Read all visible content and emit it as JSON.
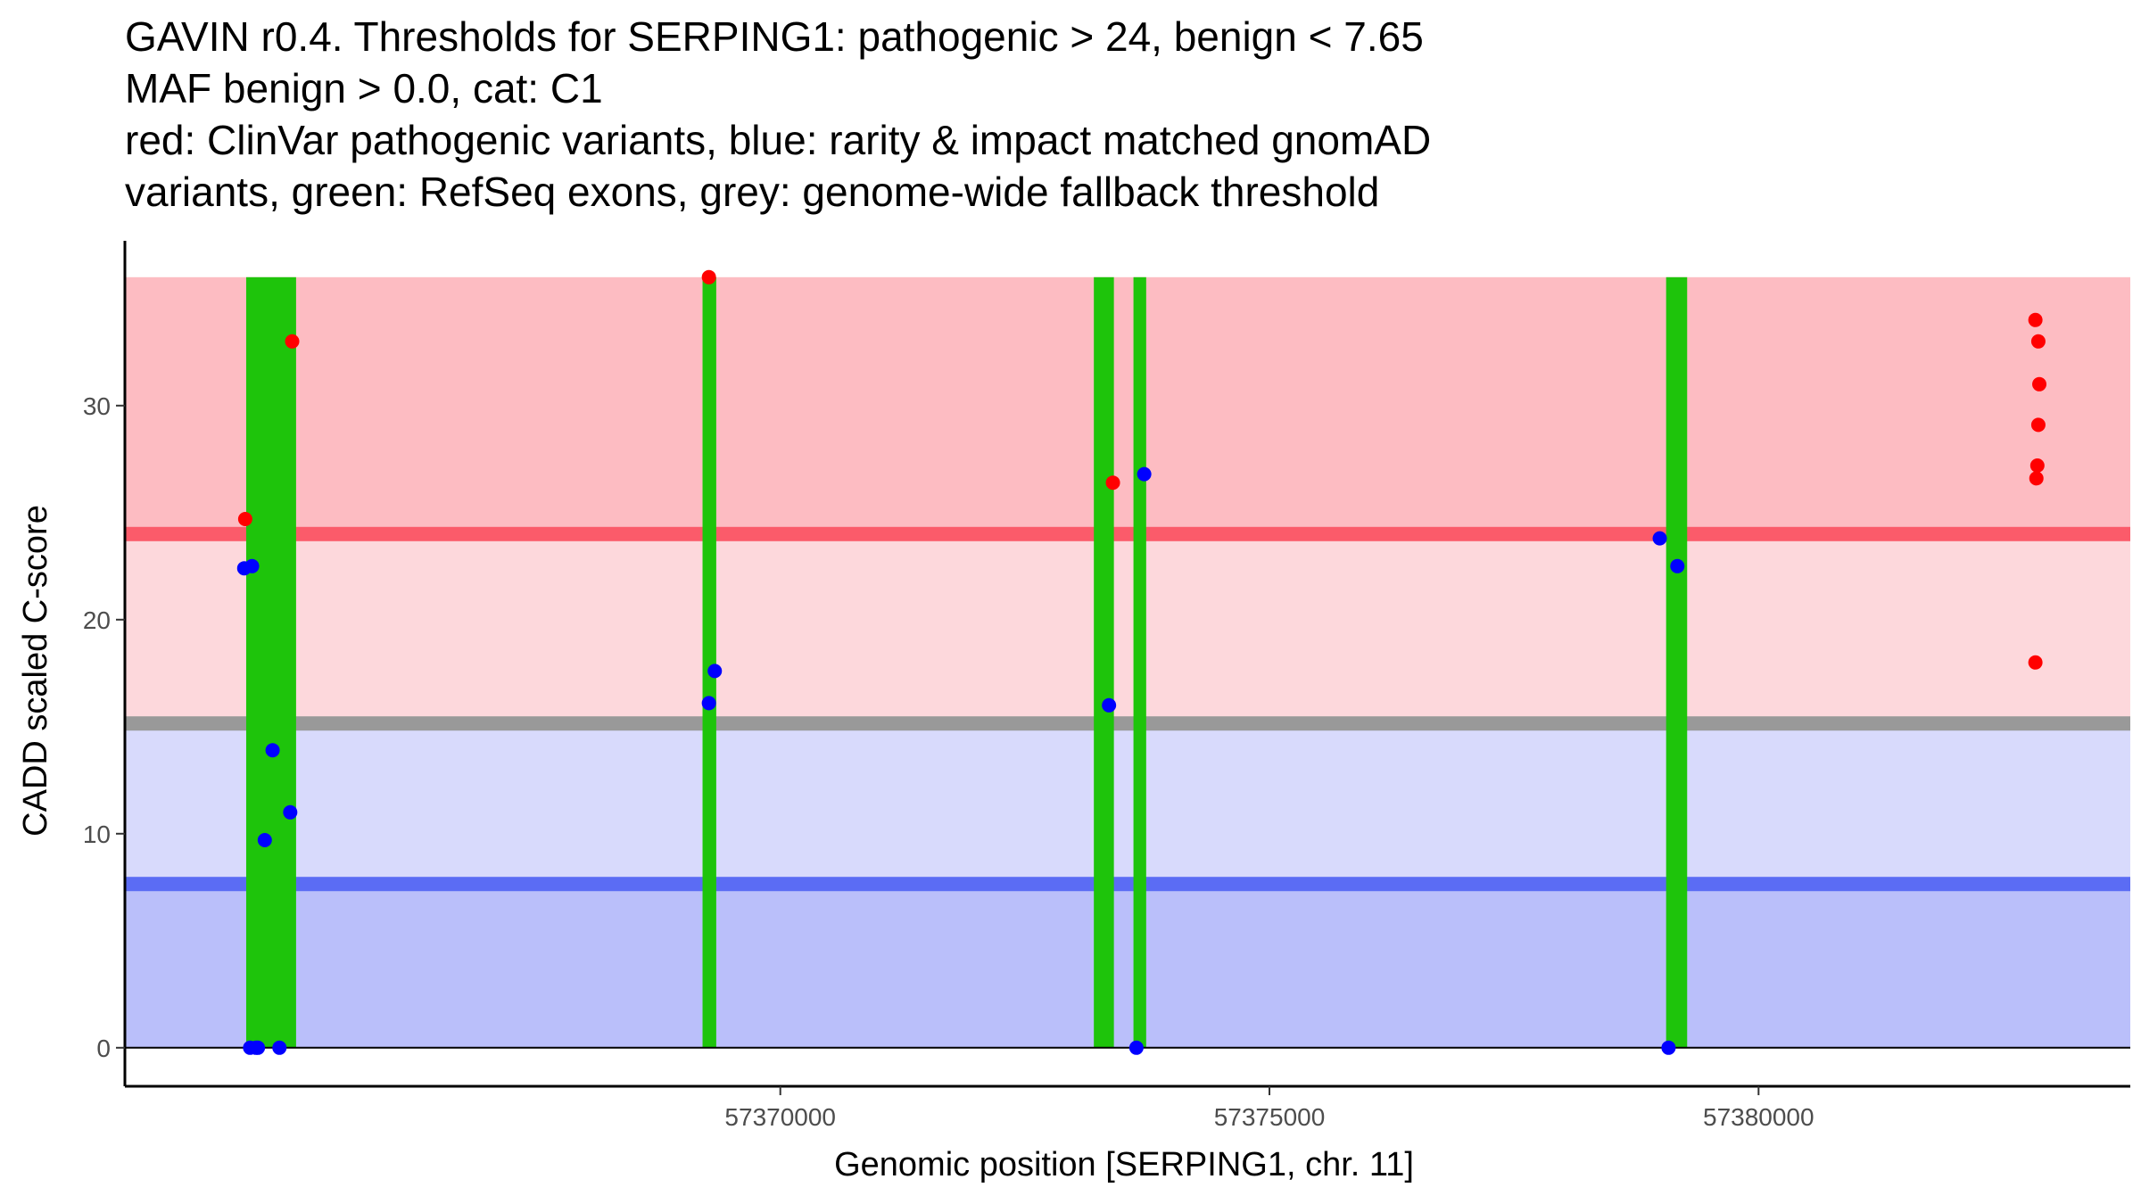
{
  "title_lines": [
    "GAVIN r0.4. Thresholds for SERPING1: pathogenic > 24, benign < 7.65",
    "MAF benign > 0.0, cat: C1",
    "red: ClinVar pathogenic variants, blue: rarity & impact matched gnomAD",
    "variants, green: RefSeq exons, grey: genome-wide fallback threshold"
  ],
  "colors": {
    "pathogenic_zone": "#fdbcc2",
    "intermediate_zone": "#fdd8dc",
    "low_zone": "#d8dafc",
    "benign_zone": "#babffa",
    "pathogenic_line": "#fb5b6a",
    "fallback_line": "#999999",
    "benign_line": "#5b6cf4",
    "exon": "#1ec40b",
    "clinvar_point": "#ff0000",
    "gnomad_point": "#0000ff",
    "axis": "#000000"
  },
  "chart_data": {
    "type": "scatter",
    "xlabel": "Genomic position [SERPING1, chr. 11]",
    "ylabel": "CADD scaled C-score",
    "xlim": [
      57363300,
      57383800
    ],
    "ylim": [
      -1.8,
      37.7
    ],
    "xticks": [
      57370000,
      57375000,
      57380000
    ],
    "yticks": [
      0,
      10,
      20,
      30
    ],
    "grid": false,
    "thresholds": {
      "pathogenic": 24,
      "benign": 7.65,
      "genome_wide_fallback": 15.15
    },
    "bands": [
      {
        "name": "pathogenic-zone",
        "ymin": 24,
        "ymax": 36,
        "color_key": "pathogenic_zone"
      },
      {
        "name": "intermediate-zone",
        "ymin": 15.15,
        "ymax": 24,
        "color_key": "intermediate_zone"
      },
      {
        "name": "low-zone",
        "ymin": 7.65,
        "ymax": 15.15,
        "color_key": "low_zone"
      },
      {
        "name": "benign-zone",
        "ymin": 0,
        "ymax": 7.65,
        "color_key": "benign_zone"
      }
    ],
    "exons": [
      {
        "start": 57364540,
        "end": 57365050
      },
      {
        "start": 57369205,
        "end": 57369345
      },
      {
        "start": 57373205,
        "end": 57373410
      },
      {
        "start": 57373610,
        "end": 57373740
      },
      {
        "start": 57379055,
        "end": 57379270
      }
    ],
    "series": [
      {
        "name": "ClinVar pathogenic variants",
        "color_key": "clinvar_point",
        "points": [
          {
            "x": 57364530,
            "y": 24.7
          },
          {
            "x": 57365010,
            "y": 33
          },
          {
            "x": 57369270,
            "y": 36
          },
          {
            "x": 57373400,
            "y": 26.4
          },
          {
            "x": 57382830,
            "y": 34
          },
          {
            "x": 57382860,
            "y": 33
          },
          {
            "x": 57382870,
            "y": 31
          },
          {
            "x": 57382860,
            "y": 29.1
          },
          {
            "x": 57382850,
            "y": 27.2
          },
          {
            "x": 57382840,
            "y": 26.6
          },
          {
            "x": 57382830,
            "y": 18
          }
        ]
      },
      {
        "name": "rarity & impact matched gnomAD variants",
        "color_key": "gnomad_point",
        "points": [
          {
            "x": 57364520,
            "y": 22.4
          },
          {
            "x": 57364600,
            "y": 22.5
          },
          {
            "x": 57364580,
            "y": 0
          },
          {
            "x": 57364640,
            "y": 0
          },
          {
            "x": 57364660,
            "y": 0
          },
          {
            "x": 57364730,
            "y": 9.7
          },
          {
            "x": 57364810,
            "y": 13.9
          },
          {
            "x": 57364880,
            "y": 0
          },
          {
            "x": 57364990,
            "y": 11
          },
          {
            "x": 57369270,
            "y": 16.1
          },
          {
            "x": 57369330,
            "y": 17.6
          },
          {
            "x": 57373360,
            "y": 16
          },
          {
            "x": 57373640,
            "y": 0
          },
          {
            "x": 57373720,
            "y": 26.8
          },
          {
            "x": 57378990,
            "y": 23.8
          },
          {
            "x": 57379080,
            "y": 0
          },
          {
            "x": 57379170,
            "y": 22.5
          }
        ]
      }
    ]
  }
}
